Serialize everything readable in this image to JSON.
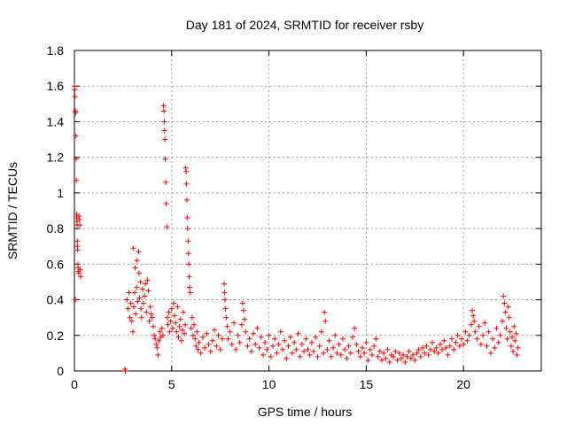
{
  "chart_data": {
    "type": "scatter",
    "title": "Day 181 of 2024, SRMTID for receiver rsby",
    "xlabel": "GPS time / hours",
    "ylabel": "SRMTID / TECUs",
    "xlim": [
      0,
      24
    ],
    "ylim": [
      0,
      1.8
    ],
    "xticks": [
      0,
      5,
      10,
      15,
      20
    ],
    "yticks": [
      0,
      0.2,
      0.4,
      0.6,
      0.8,
      1,
      1.2,
      1.4,
      1.6,
      1.8
    ],
    "xtick_labels": [
      "0",
      "5",
      "10",
      "15",
      "20"
    ],
    "ytick_labels": [
      "0",
      "0.2",
      "0.4",
      "0.6",
      "0.8",
      "1",
      "1.2",
      "1.4",
      "1.6",
      "1.8"
    ],
    "grid": true,
    "marker": "+",
    "color": "#ff0000",
    "series": [
      {
        "name": "SRMTID",
        "points": [
          [
            0.0,
            1.6
          ],
          [
            0.02,
            1.58
          ],
          [
            0.03,
            1.54
          ],
          [
            0.05,
            1.46
          ],
          [
            0.06,
            1.45
          ],
          [
            0.08,
            1.32
          ],
          [
            0.09,
            1.19
          ],
          [
            0.1,
            1.07
          ],
          [
            0.11,
            0.88
          ],
          [
            0.12,
            0.86
          ],
          [
            0.13,
            0.84
          ],
          [
            0.14,
            0.82
          ],
          [
            0.15,
            0.73
          ],
          [
            0.16,
            0.7
          ],
          [
            0.17,
            0.68
          ],
          [
            0.18,
            0.6
          ],
          [
            0.19,
            0.58
          ],
          [
            0.2,
            0.56
          ],
          [
            0.22,
            0.55
          ],
          [
            0.24,
            0.87
          ],
          [
            0.26,
            0.85
          ],
          [
            0.28,
            0.82
          ],
          [
            0.3,
            0.57
          ],
          [
            0.32,
            0.53
          ],
          [
            0.05,
            0.4
          ],
          [
            2.6,
            0.01
          ],
          [
            2.62,
            0.0
          ],
          [
            2.7,
            0.4
          ],
          [
            2.75,
            0.35
          ],
          [
            2.8,
            0.44
          ],
          [
            2.85,
            0.3
          ],
          [
            2.9,
            0.38
          ],
          [
            2.95,
            0.28
          ],
          [
            3.0,
            0.22
          ],
          [
            3.02,
            0.69
          ],
          [
            3.05,
            0.36
          ],
          [
            3.1,
            0.44
          ],
          [
            3.12,
            0.58
          ],
          [
            3.15,
            0.32
          ],
          [
            3.2,
            0.47
          ],
          [
            3.22,
            0.62
          ],
          [
            3.25,
            0.39
          ],
          [
            3.3,
            0.67
          ],
          [
            3.32,
            0.55
          ],
          [
            3.35,
            0.41
          ],
          [
            3.4,
            0.5
          ],
          [
            3.42,
            0.35
          ],
          [
            3.45,
            0.3
          ],
          [
            3.5,
            0.46
          ],
          [
            3.55,
            0.38
          ],
          [
            3.6,
            0.42
          ],
          [
            3.65,
            0.49
          ],
          [
            3.7,
            0.33
          ],
          [
            3.75,
            0.51
          ],
          [
            3.8,
            0.45
          ],
          [
            3.85,
            0.28
          ],
          [
            3.9,
            0.36
          ],
          [
            3.95,
            0.32
          ],
          [
            4.0,
            0.3
          ],
          [
            4.05,
            0.25
          ],
          [
            4.1,
            0.2
          ],
          [
            4.15,
            0.18
          ],
          [
            4.2,
            0.15
          ],
          [
            4.25,
            0.13
          ],
          [
            4.3,
            0.09
          ],
          [
            4.35,
            0.17
          ],
          [
            4.4,
            0.22
          ],
          [
            4.45,
            0.19
          ],
          [
            4.5,
            0.24
          ],
          [
            4.55,
            0.2
          ],
          [
            4.58,
            1.49
          ],
          [
            4.6,
            1.46
          ],
          [
            4.62,
            1.4
          ],
          [
            4.63,
            1.35
          ],
          [
            4.65,
            1.3
          ],
          [
            4.67,
            1.19
          ],
          [
            4.7,
            1.06
          ],
          [
            4.72,
            0.94
          ],
          [
            4.75,
            0.81
          ],
          [
            4.78,
            0.3
          ],
          [
            4.8,
            0.26
          ],
          [
            4.85,
            0.33
          ],
          [
            4.9,
            0.22
          ],
          [
            4.95,
            0.28
          ],
          [
            5.0,
            0.35
          ],
          [
            5.05,
            0.24
          ],
          [
            5.1,
            0.38
          ],
          [
            5.15,
            0.31
          ],
          [
            5.2,
            0.27
          ],
          [
            5.25,
            0.22
          ],
          [
            5.3,
            0.36
          ],
          [
            5.35,
            0.19
          ],
          [
            5.4,
            0.25
          ],
          [
            5.45,
            0.29
          ],
          [
            5.5,
            0.17
          ],
          [
            5.55,
            0.23
          ],
          [
            5.6,
            0.33
          ],
          [
            5.65,
            0.21
          ],
          [
            5.7,
            0.26
          ],
          [
            5.72,
            1.14
          ],
          [
            5.74,
            1.12
          ],
          [
            5.76,
            1.05
          ],
          [
            5.78,
            0.96
          ],
          [
            5.8,
            0.86
          ],
          [
            5.82,
            0.8
          ],
          [
            5.84,
            0.73
          ],
          [
            5.86,
            0.66
          ],
          [
            5.88,
            0.6
          ],
          [
            5.9,
            0.53
          ],
          [
            5.92,
            0.47
          ],
          [
            5.95,
            0.44
          ],
          [
            6.0,
            0.24
          ],
          [
            6.05,
            0.3
          ],
          [
            6.1,
            0.2
          ],
          [
            6.15,
            0.26
          ],
          [
            6.2,
            0.18
          ],
          [
            6.25,
            0.14
          ],
          [
            6.3,
            0.22
          ],
          [
            6.35,
            0.12
          ],
          [
            6.4,
            0.16
          ],
          [
            6.5,
            0.1
          ],
          [
            6.6,
            0.19
          ],
          [
            6.7,
            0.13
          ],
          [
            6.8,
            0.21
          ],
          [
            6.9,
            0.15
          ],
          [
            7.0,
            0.11
          ],
          [
            7.1,
            0.17
          ],
          [
            7.2,
            0.23
          ],
          [
            7.3,
            0.14
          ],
          [
            7.4,
            0.2
          ],
          [
            7.5,
            0.12
          ],
          [
            7.6,
            0.18
          ],
          [
            7.7,
            0.49
          ],
          [
            7.72,
            0.44
          ],
          [
            7.74,
            0.4
          ],
          [
            7.76,
            0.35
          ],
          [
            7.8,
            0.3
          ],
          [
            7.85,
            0.25
          ],
          [
            7.9,
            0.18
          ],
          [
            8.0,
            0.22
          ],
          [
            8.1,
            0.15
          ],
          [
            8.2,
            0.27
          ],
          [
            8.3,
            0.12
          ],
          [
            8.4,
            0.2
          ],
          [
            8.5,
            0.16
          ],
          [
            8.6,
            0.26
          ],
          [
            8.65,
            0.38
          ],
          [
            8.7,
            0.34
          ],
          [
            8.75,
            0.29
          ],
          [
            8.8,
            0.22
          ],
          [
            8.9,
            0.14
          ],
          [
            9.0,
            0.18
          ],
          [
            9.1,
            0.11
          ],
          [
            9.2,
            0.21
          ],
          [
            9.3,
            0.15
          ],
          [
            9.4,
            0.24
          ],
          [
            9.5,
            0.13
          ],
          [
            9.6,
            0.19
          ],
          [
            9.7,
            0.09
          ],
          [
            9.8,
            0.16
          ],
          [
            9.9,
            0.12
          ],
          [
            10.0,
            0.2
          ],
          [
            10.1,
            0.08
          ],
          [
            10.2,
            0.14
          ],
          [
            10.3,
            0.18
          ],
          [
            10.4,
            0.1
          ],
          [
            10.5,
            0.15
          ],
          [
            10.6,
            0.22
          ],
          [
            10.7,
            0.12
          ],
          [
            10.8,
            0.17
          ],
          [
            10.9,
            0.07
          ],
          [
            11.0,
            0.14
          ],
          [
            11.1,
            0.19
          ],
          [
            11.2,
            0.1
          ],
          [
            11.3,
            0.16
          ],
          [
            11.4,
            0.12
          ],
          [
            11.5,
            0.21
          ],
          [
            11.6,
            0.08
          ],
          [
            11.7,
            0.15
          ],
          [
            11.8,
            0.11
          ],
          [
            11.9,
            0.18
          ],
          [
            12.0,
            0.12
          ],
          [
            12.1,
            0.09
          ],
          [
            12.2,
            0.16
          ],
          [
            12.3,
            0.11
          ],
          [
            12.4,
            0.19
          ],
          [
            12.5,
            0.08
          ],
          [
            12.6,
            0.14
          ],
          [
            12.7,
            0.22
          ],
          [
            12.8,
            0.1
          ],
          [
            12.85,
            0.33
          ],
          [
            12.9,
            0.28
          ],
          [
            13.0,
            0.12
          ],
          [
            13.1,
            0.17
          ],
          [
            13.2,
            0.08
          ],
          [
            13.3,
            0.13
          ],
          [
            13.4,
            0.2
          ],
          [
            13.5,
            0.1
          ],
          [
            13.6,
            0.15
          ],
          [
            13.7,
            0.09
          ],
          [
            13.8,
            0.18
          ],
          [
            13.9,
            0.12
          ],
          [
            14.0,
            0.07
          ],
          [
            14.1,
            0.14
          ],
          [
            14.2,
            0.1
          ],
          [
            14.3,
            0.19
          ],
          [
            14.4,
            0.24
          ],
          [
            14.5,
            0.15
          ],
          [
            14.6,
            0.11
          ],
          [
            14.7,
            0.08
          ],
          [
            14.8,
            0.13
          ],
          [
            14.9,
            0.1
          ],
          [
            15.0,
            0.16
          ],
          [
            15.1,
            0.06
          ],
          [
            15.2,
            0.12
          ],
          [
            15.3,
            0.09
          ],
          [
            15.4,
            0.14
          ],
          [
            15.5,
            0.18
          ],
          [
            15.6,
            0.08
          ],
          [
            15.7,
            0.11
          ],
          [
            15.8,
            0.06
          ],
          [
            15.9,
            0.1
          ],
          [
            16.0,
            0.07
          ],
          [
            16.1,
            0.12
          ],
          [
            16.2,
            0.05
          ],
          [
            16.3,
            0.09
          ],
          [
            16.4,
            0.08
          ],
          [
            16.5,
            0.11
          ],
          [
            16.6,
            0.06
          ],
          [
            16.7,
            0.1
          ],
          [
            16.8,
            0.07
          ],
          [
            16.9,
            0.09
          ],
          [
            17.0,
            0.05
          ],
          [
            17.1,
            0.08
          ],
          [
            17.2,
            0.11
          ],
          [
            17.3,
            0.07
          ],
          [
            17.4,
            0.09
          ],
          [
            17.5,
            0.06
          ],
          [
            17.6,
            0.1
          ],
          [
            17.7,
            0.12
          ],
          [
            17.8,
            0.08
          ],
          [
            17.9,
            0.13
          ],
          [
            18.0,
            0.1
          ],
          [
            18.1,
            0.14
          ],
          [
            18.2,
            0.09
          ],
          [
            18.3,
            0.12
          ],
          [
            18.4,
            0.16
          ],
          [
            18.5,
            0.11
          ],
          [
            18.6,
            0.13
          ],
          [
            18.7,
            0.1
          ],
          [
            18.8,
            0.15
          ],
          [
            18.9,
            0.12
          ],
          [
            19.0,
            0.17
          ],
          [
            19.1,
            0.13
          ],
          [
            19.2,
            0.09
          ],
          [
            19.3,
            0.14
          ],
          [
            19.4,
            0.18
          ],
          [
            19.5,
            0.12
          ],
          [
            19.6,
            0.16
          ],
          [
            19.7,
            0.2
          ],
          [
            19.8,
            0.14
          ],
          [
            19.9,
            0.18
          ],
          [
            20.0,
            0.15
          ],
          [
            20.1,
            0.22
          ],
          [
            20.2,
            0.17
          ],
          [
            20.3,
            0.2
          ],
          [
            20.4,
            0.26
          ],
          [
            20.45,
            0.34
          ],
          [
            20.5,
            0.31
          ],
          [
            20.55,
            0.28
          ],
          [
            20.6,
            0.22
          ],
          [
            20.7,
            0.18
          ],
          [
            20.8,
            0.25
          ],
          [
            20.9,
            0.15
          ],
          [
            21.0,
            0.2
          ],
          [
            21.1,
            0.27
          ],
          [
            21.2,
            0.14
          ],
          [
            21.3,
            0.22
          ],
          [
            21.4,
            0.1
          ],
          [
            21.5,
            0.18
          ],
          [
            21.6,
            0.13
          ],
          [
            21.7,
            0.24
          ],
          [
            21.8,
            0.16
          ],
          [
            21.9,
            0.2
          ],
          [
            22.0,
            0.28
          ],
          [
            22.05,
            0.42
          ],
          [
            22.1,
            0.38
          ],
          [
            22.15,
            0.33
          ],
          [
            22.2,
            0.24
          ],
          [
            22.25,
            0.18
          ],
          [
            22.3,
            0.36
          ],
          [
            22.35,
            0.3
          ],
          [
            22.4,
            0.22
          ],
          [
            22.45,
            0.14
          ],
          [
            22.5,
            0.19
          ],
          [
            22.55,
            0.11
          ],
          [
            22.6,
            0.25
          ],
          [
            22.65,
            0.17
          ],
          [
            22.7,
            0.21
          ],
          [
            22.75,
            0.09
          ],
          [
            22.8,
            0.13
          ]
        ]
      }
    ]
  }
}
